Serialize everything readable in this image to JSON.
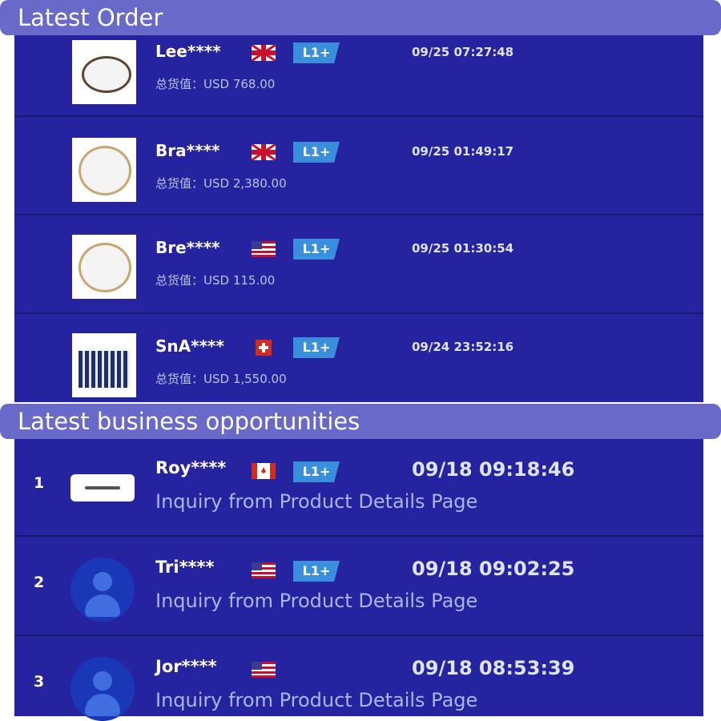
{
  "orders_section": {
    "title": "Latest Order",
    "rows": [
      {
        "name": "Lee****",
        "flag": "uk-flag",
        "level": "L1+",
        "time": "09/25 07:27:48",
        "value": "总货值：USD 768.00"
      },
      {
        "name": "Bra****",
        "flag": "uk-flag",
        "level": "L1+",
        "time": "09/25 01:49:17",
        "value": "总货值：USD 2,380.00"
      },
      {
        "name": "Bre****",
        "flag": "us-flag",
        "level": "L1+",
        "time": "09/25 01:30:54",
        "value": "总货值：USD 115.00"
      },
      {
        "name": "SnA****",
        "flag": "swiss-flag",
        "level": "L1+",
        "time": "09/24 23:52:16",
        "value": "总货值：USD 1,550.00"
      }
    ]
  },
  "opportunities_section": {
    "title": "Latest business opportunities",
    "rows": [
      {
        "index": "1",
        "name": "Roy****",
        "flag": "canada-flag",
        "level": "L1+",
        "time": "09/18 09:18:46",
        "source": "Inquiry from Product Details Page"
      },
      {
        "index": "2",
        "name": "Tri****",
        "flag": "us-flag",
        "level": "L1+",
        "time": "09/18 09:02:25",
        "source": "Inquiry from Product Details Page"
      },
      {
        "index": "3",
        "name": "Jor****",
        "flag": "us-flag",
        "level": "",
        "time": "09/18 08:53:39",
        "source": "Inquiry from Product Details Page"
      }
    ]
  },
  "colors": {
    "header": "#6869c9",
    "panel": "#25239f",
    "badge": "#3a8fdc"
  }
}
